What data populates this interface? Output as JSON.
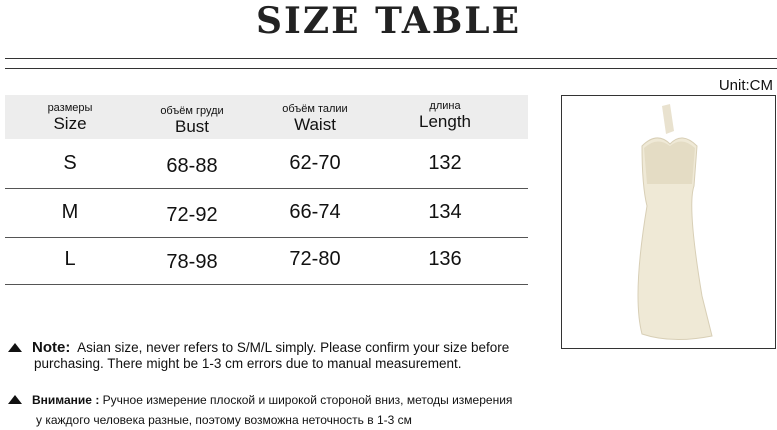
{
  "title": "SIZE TABLE",
  "unit": "Unit:CM",
  "table": {
    "headers": [
      {
        "ru": "размеры",
        "en": "Size"
      },
      {
        "ru": "объём груди",
        "en": "Bust"
      },
      {
        "ru": "объём талии",
        "en": "Waist"
      },
      {
        "ru": "длина",
        "en": "Length"
      }
    ],
    "rows": [
      [
        "S",
        "68-88",
        "62-70",
        "132"
      ],
      [
        "M",
        "72-92",
        "66-74",
        "134"
      ],
      [
        "L",
        "78-98",
        "72-80",
        "136"
      ]
    ]
  },
  "notes": {
    "en_label": "Note:",
    "en_line1": "Asian size, never refers to S/M/L simply. Please confirm your size before",
    "en_line2": "purchasing. There might be 1-3 cm errors due to manual measurement.",
    "ru_label": "Внимание :",
    "ru_line1": "Ручное измерение плоской и широкой стороной вниз, методы измерения",
    "ru_line2": "у каждого человека разные, поэтому возможна неточность в 1-3 см"
  }
}
